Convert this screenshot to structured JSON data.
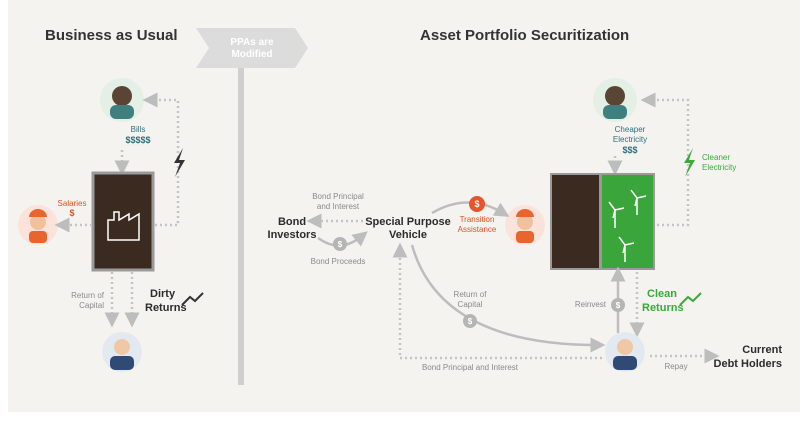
{
  "left": {
    "title": "Business as Usual",
    "bills": [
      "Bills",
      "$$$$$"
    ],
    "salaries": [
      "Salaries",
      "$"
    ],
    "return_of_capital": [
      "Return of",
      "Capital"
    ],
    "dirty_returns": [
      "Dirty",
      "Returns"
    ]
  },
  "divider": {
    "label": [
      "PPAs are",
      "Modified"
    ]
  },
  "right": {
    "title": "Asset Portfolio Securitization",
    "cheaper_electricity": [
      "Cheaper",
      "Electricity",
      "$$$"
    ],
    "cleaner_electricity": [
      "Cleaner",
      "Electricity"
    ],
    "bond_principal_top": [
      "Bond Principal",
      "and Interest"
    ],
    "bond_investors": [
      "Bond",
      "Investors"
    ],
    "spv": [
      "Special Purpose",
      "Vehicle"
    ],
    "transition_assistance": [
      "Transition",
      "Assistance"
    ],
    "bond_proceeds": "Bond Proceeds",
    "return_of_capital": [
      "Return of",
      "Capital"
    ],
    "reinvest": "Reinvest",
    "clean_returns": [
      "Clean",
      "Returns"
    ],
    "current_debt_holders": [
      "Current",
      "Debt Holders"
    ],
    "repay": "Repay",
    "bond_principal_bottom": "Bond Principal and Interest"
  }
}
